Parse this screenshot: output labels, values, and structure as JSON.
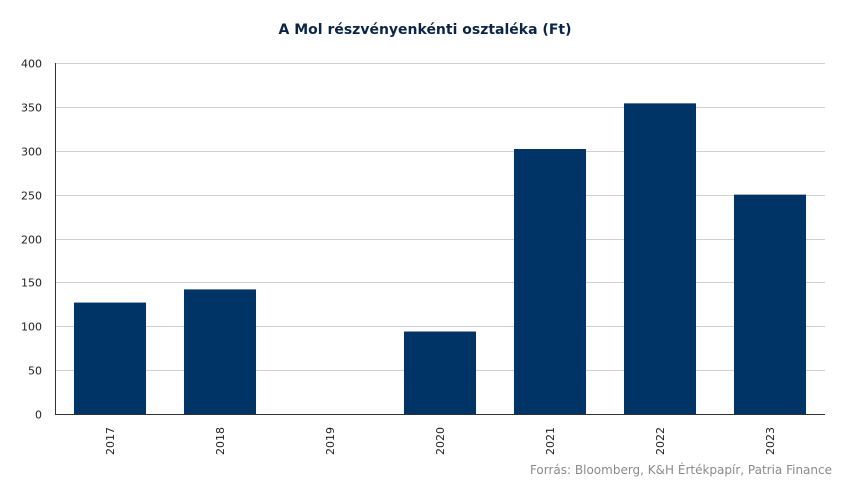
{
  "chart_data": {
    "type": "bar",
    "title": "A Mol részvényenkénti osztaléka (Ft)",
    "categories": [
      "2017",
      "2018",
      "2019",
      "2020",
      "2021",
      "2022",
      "2023"
    ],
    "values": [
      127,
      142,
      0,
      94,
      302,
      354,
      250
    ],
    "xlabel": "",
    "ylabel": "",
    "ylim": [
      0,
      400
    ],
    "yticks": [
      0,
      50,
      100,
      150,
      200,
      250,
      300,
      350,
      400
    ],
    "grid": true,
    "legend": "none",
    "bar_color": "#003366",
    "source": "Forrás: Bloomberg, K&H Értékpapír, Patria Finance"
  }
}
